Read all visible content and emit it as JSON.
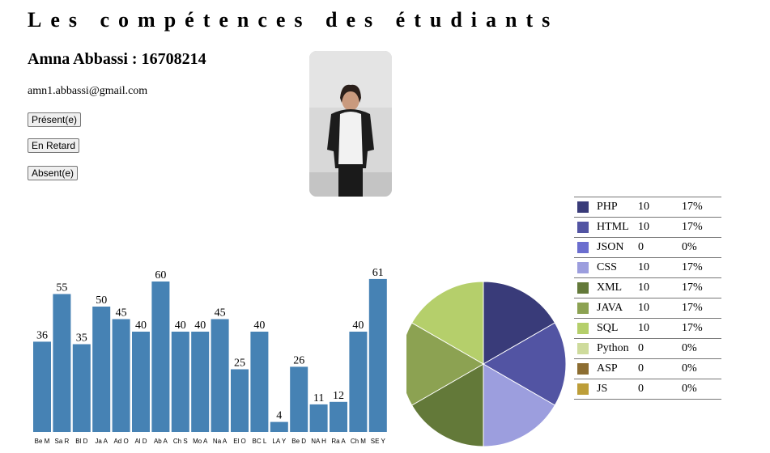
{
  "page": {
    "title": "Les compétences des étudiants"
  },
  "student": {
    "name": "Amna Abbassi : 16708214",
    "email": "amn1.abbassi@gmail.com"
  },
  "buttons": {
    "present": "Présent(e)",
    "late": "En Retard",
    "absent": "Absent(e)"
  },
  "chart_data": [
    {
      "type": "bar",
      "categories": [
        "Be M",
        "Sa R",
        "Bl D",
        "Ja A",
        "Ad O",
        "Al D",
        "Ab A",
        "Ch S",
        "Mo A",
        "Na A",
        "El O",
        "BC L",
        "LA Y",
        "Be D",
        "NA H",
        "Ra A",
        "Ch M",
        "SE Y"
      ],
      "values": [
        36,
        55,
        35,
        50,
        45,
        40,
        60,
        40,
        40,
        45,
        25,
        40,
        4,
        26,
        11,
        12,
        40,
        61
      ],
      "bar_color": "#4682b4",
      "data_labels": true
    },
    {
      "type": "pie",
      "slices": [
        {
          "label": "PHP",
          "value": 10,
          "percent": "17%",
          "color": "#393b79"
        },
        {
          "label": "HTML",
          "value": 10,
          "percent": "17%",
          "color": "#5254a3"
        },
        {
          "label": "JSON",
          "value": 0,
          "percent": "0%",
          "color": "#6b6ecf"
        },
        {
          "label": "CSS",
          "value": 10,
          "percent": "17%",
          "color": "#9c9ede"
        },
        {
          "label": "XML",
          "value": 10,
          "percent": "17%",
          "color": "#637939"
        },
        {
          "label": "JAVA",
          "value": 10,
          "percent": "17%",
          "color": "#8ca252"
        },
        {
          "label": "SQL",
          "value": 10,
          "percent": "17%",
          "color": "#b5cf6b"
        },
        {
          "label": "Python",
          "value": 0,
          "percent": "0%",
          "color": "#cedb9c"
        },
        {
          "label": "ASP",
          "value": 0,
          "percent": "0%",
          "color": "#8c6d31"
        },
        {
          "label": "JS",
          "value": 0,
          "percent": "0%",
          "color": "#bd9e39"
        }
      ],
      "legend": "right"
    }
  ]
}
